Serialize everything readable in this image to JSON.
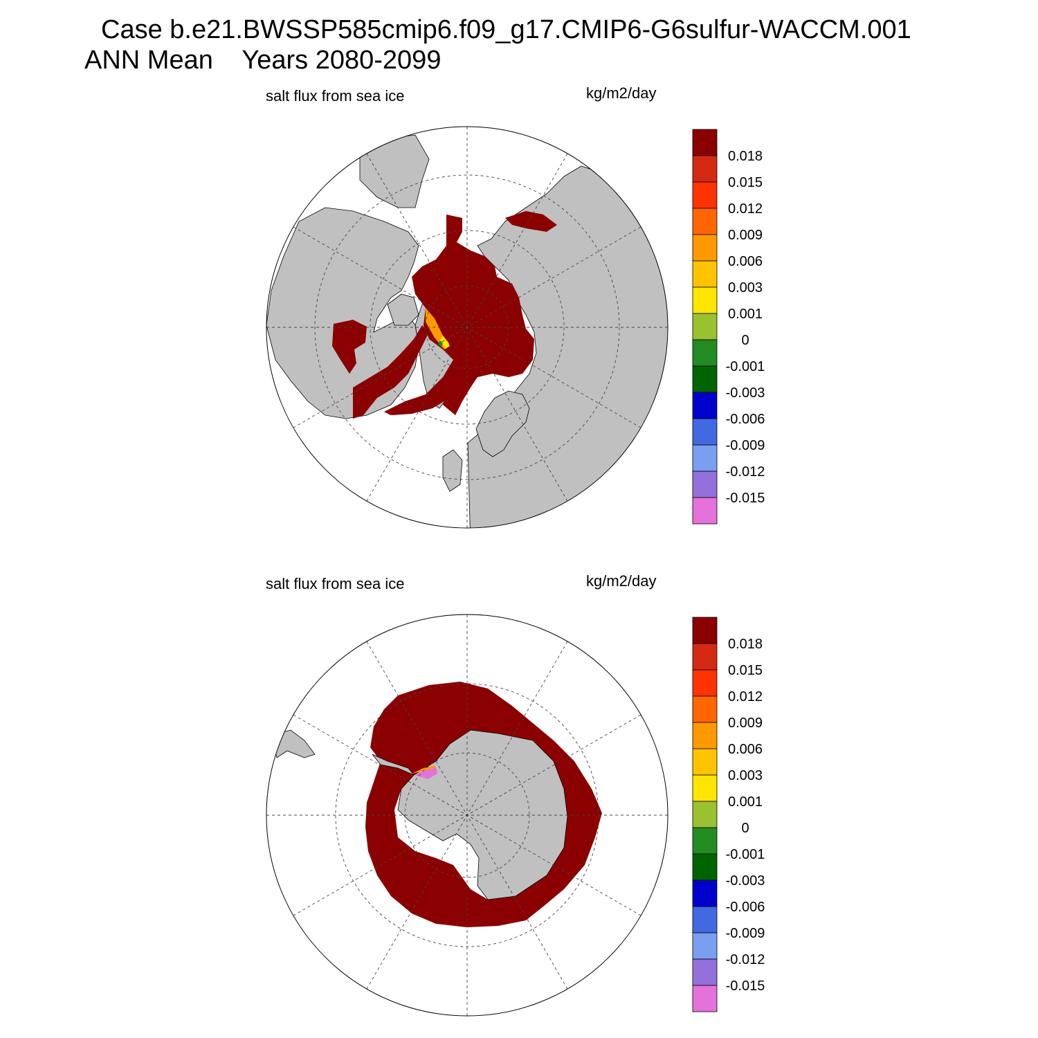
{
  "header": {
    "line1": "Case b.e21.BWSSP585cmip6.f09_g17.CMIP6-G6sulfur-WACCM.001",
    "line2": "ANN Mean    Years 2080-2099"
  },
  "colors": {
    "land": "#c0c0c0",
    "ocean": "#ffffff",
    "positive_ice": "#8b0000",
    "border": "#000000"
  },
  "chart_data": [
    {
      "type": "heatmap",
      "hemisphere": "north",
      "title": "salt flux from sea ice",
      "units": "kg/m2/day",
      "legend_labels": [
        "0.018",
        "0.015",
        "0.012",
        "0.009",
        "0.006",
        "0.003",
        "0.001",
        "0",
        "-0.001",
        "-0.003",
        "-0.006",
        "-0.009",
        "-0.012",
        "-0.015"
      ],
      "legend_colors": [
        "#8b0000",
        "#d42a14",
        "#ff3300",
        "#ff6600",
        "#ff9900",
        "#ffc300",
        "#ffe600",
        "#9ac12e",
        "#228b22",
        "#006400",
        "#0000cd",
        "#4169e1",
        "#7b9ff0",
        "#9370db",
        "#e472da"
      ],
      "grid": true
    },
    {
      "type": "heatmap",
      "hemisphere": "south",
      "title": "salt flux from sea ice",
      "units": "kg/m2/day",
      "legend_labels": [
        "0.018",
        "0.015",
        "0.012",
        "0.009",
        "0.006",
        "0.003",
        "0.001",
        "0",
        "-0.001",
        "-0.003",
        "-0.006",
        "-0.009",
        "-0.012",
        "-0.015"
      ],
      "legend_colors": [
        "#8b0000",
        "#d42a14",
        "#ff3300",
        "#ff6600",
        "#ff9900",
        "#ffc300",
        "#ffe600",
        "#9ac12e",
        "#228b22",
        "#006400",
        "#0000cd",
        "#4169e1",
        "#7b9ff0",
        "#9370db",
        "#e472da"
      ],
      "grid": true
    }
  ]
}
